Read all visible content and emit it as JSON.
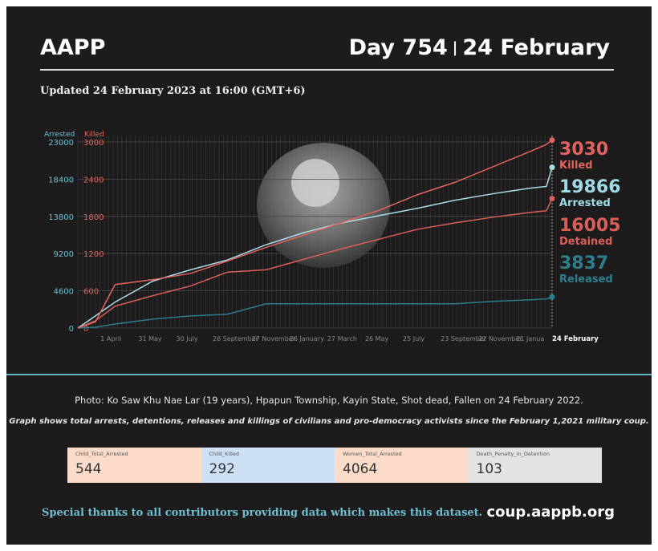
{
  "header": {
    "brand": "AAPP",
    "day": "Day 754",
    "separator": "|",
    "date": "24 February"
  },
  "updated": "Updated 24 February 2023 at 16:00 (GMT+6)",
  "photo_caption": "Photo: Ko Saw Khu Nae Lar (19 years), Hpapun Township, Kayin State, Shot dead, Fallen on 24 February 2022.",
  "note": "Graph shows total arrests, detentions, releases and killings of civilians and pro-democracy activists since the February 1,2021 military coup.",
  "kpis": [
    {
      "label": "Child_Total_Arrested",
      "value": "544",
      "bg": "#fbdccb"
    },
    {
      "label": "Child_Killed",
      "value": "292",
      "bg": "#cde0f6"
    },
    {
      "label": "Women_Total_Arrested",
      "value": "4064",
      "bg": "#fbdccb"
    },
    {
      "label": "Death_Penalty_in_Detention",
      "value": "103",
      "bg": "#e3e3e5"
    }
  ],
  "footer": {
    "thanks": "Special thanks to all contributors providing data which makes this dataset.",
    "site": "coup.aappb.org"
  },
  "chart_data": {
    "type": "line",
    "left_axis": {
      "label": "Arrested",
      "range": [
        0,
        23000
      ],
      "ticks": [
        0,
        4600,
        9200,
        13800,
        18400,
        23000
      ]
    },
    "right_axis": {
      "label": "Killed",
      "range": [
        0,
        3000
      ],
      "ticks": [
        0,
        600,
        1200,
        1800,
        2400,
        3000
      ]
    },
    "x_range_days": [
      0,
      753
    ],
    "x_ticks": [
      {
        "day": 59,
        "label": "1 April"
      },
      {
        "day": 119,
        "label": "31 May"
      },
      {
        "day": 179,
        "label": "30 July"
      },
      {
        "day": 237,
        "label": "26 September"
      },
      {
        "day": 299,
        "label": "27 November"
      },
      {
        "day": 359,
        "label": "26 January"
      },
      {
        "day": 419,
        "label": "27 March"
      },
      {
        "day": 479,
        "label": "26 May"
      },
      {
        "day": 539,
        "label": "25 July"
      },
      {
        "day": 599,
        "label": "23 September"
      },
      {
        "day": 659,
        "label": "22 November"
      },
      {
        "day": 719,
        "label": "21 Janua"
      },
      {
        "day": 753,
        "label": "24 February"
      }
    ],
    "days": [
      0,
      28,
      59,
      119,
      179,
      237,
      299,
      359,
      419,
      479,
      539,
      599,
      659,
      719,
      744,
      753
    ],
    "series": [
      {
        "name": "Killed",
        "axis": "right",
        "color": "#e0645f",
        "final": "3030",
        "values": [
          0,
          100,
          700,
          780,
          880,
          1080,
          1300,
          1500,
          1700,
          1900,
          2150,
          2350,
          2600,
          2850,
          2960,
          3030
        ]
      },
      {
        "name": "Arrested",
        "axis": "left",
        "color": "#a9dde6",
        "final": "19866",
        "values": [
          0,
          1500,
          3200,
          5800,
          7200,
          8400,
          10300,
          11800,
          13000,
          13900,
          14800,
          15800,
          16600,
          17300,
          17500,
          19866
        ]
      },
      {
        "name": "Detained",
        "axis": "left",
        "color": "#d9605a",
        "final": "16005",
        "values": [
          0,
          900,
          2700,
          4000,
          5200,
          6900,
          7200,
          8500,
          9800,
          11000,
          12200,
          13000,
          13700,
          14300,
          14500,
          16005
        ]
      },
      {
        "name": "Released",
        "axis": "left",
        "color": "#2d7f8c",
        "final": "3837",
        "values": [
          0,
          100,
          500,
          1100,
          1500,
          1700,
          3000,
          3000,
          3000,
          3000,
          3000,
          3000,
          3300,
          3500,
          3600,
          3837
        ]
      }
    ]
  }
}
